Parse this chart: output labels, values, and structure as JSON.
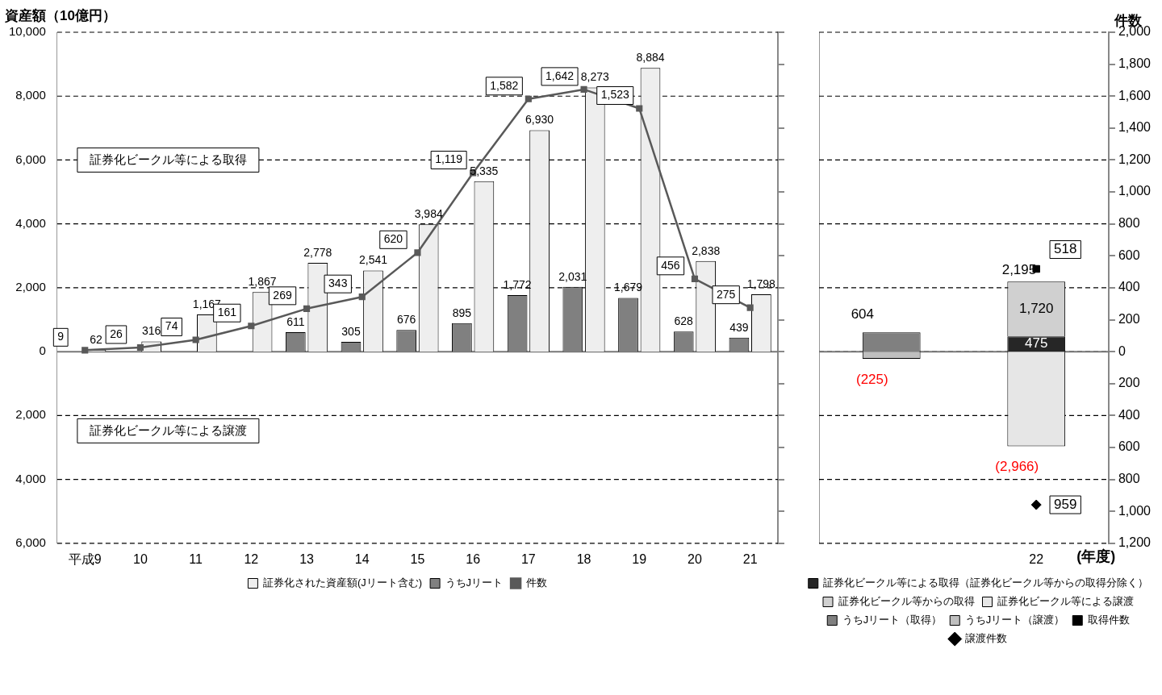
{
  "chart_data": [
    {
      "type": "bar",
      "ylabel": "資産額（10億円）",
      "categories": [
        "平成9",
        "10",
        "11",
        "12",
        "13",
        "14",
        "15",
        "16",
        "17",
        "18",
        "19",
        "20",
        "21"
      ],
      "ylim": [
        -6000,
        10000
      ],
      "yticks": [
        {
          "value": -6000,
          "label": "6,000"
        },
        {
          "value": -4000,
          "label": "4,000"
        },
        {
          "value": -2000,
          "label": "2,000"
        },
        0,
        {
          "value": 2000,
          "label": "2,000"
        },
        {
          "value": 4000,
          "label": "4,000"
        },
        {
          "value": 6000,
          "label": "6,000"
        },
        {
          "value": 8000,
          "label": "8,000"
        },
        {
          "value": 10000,
          "label": "10,000"
        }
      ],
      "y2lim": [
        -1200,
        2000
      ],
      "y2ticks": [
        {
          "value": -1200,
          "label": null
        },
        {
          "value": -1000,
          "label": null
        },
        {
          "value": -800,
          "label": null
        },
        {
          "value": -600,
          "label": null
        },
        {
          "value": -400,
          "label": null
        },
        {
          "value": -200,
          "label": null
        },
        {
          "value": 0,
          "label": null
        },
        {
          "value": 200,
          "label": null
        },
        {
          "value": 400,
          "label": null
        },
        {
          "value": 600,
          "label": null
        },
        {
          "value": 800,
          "label": null
        },
        {
          "value": 1000,
          "label": null
        },
        {
          "value": 1200,
          "label": null
        },
        {
          "value": 1400,
          "label": null
        },
        {
          "value": 1600,
          "label": null
        },
        {
          "value": 1800,
          "label": null
        },
        {
          "value": 2000,
          "label": null
        }
      ],
      "grid": "y",
      "legend": "bottom",
      "marker": "square",
      "annotations": [
        "証券化ビークル等による取得",
        "証券化ビークル等による譲渡"
      ],
      "series": [
        {
          "name": "証券化された資産額(Jリート含む)",
          "color": "#eeeeee",
          "values": [
            62,
            316,
            1167,
            1867,
            2778,
            2541,
            3984,
            5335,
            6930,
            8273,
            8884,
            2838,
            1798
          ],
          "value_labels": [
            "62",
            "316",
            "1,167",
            "1,867",
            "2,778",
            "2,541",
            "3,984",
            "5,335",
            "6,930",
            "8,273",
            "8,884",
            "2,838",
            "1,798"
          ]
        },
        {
          "name": "うちJリート",
          "color": "#808080",
          "values": [
            null,
            null,
            null,
            null,
            611,
            305,
            676,
            895,
            1772,
            2031,
            1679,
            628,
            439
          ],
          "value_labels": [
            null,
            null,
            null,
            null,
            "611",
            "305",
            "676",
            "895",
            "1,772",
            "2,031",
            "1,679",
            "628",
            "439"
          ]
        },
        {
          "name": "件数",
          "type": "line",
          "axis": "y2",
          "color": "#595959",
          "values": [
            9,
            26,
            74,
            161,
            269,
            343,
            620,
            1119,
            1582,
            1642,
            1523,
            456,
            275
          ],
          "value_labels": [
            "9",
            "26",
            "74",
            "161",
            "269",
            "343",
            "620",
            "1,119",
            "1,582",
            "1,642",
            "1,523",
            "456",
            "275"
          ]
        }
      ]
    },
    {
      "type": "bar",
      "stacked": true,
      "categories": [
        null,
        "22"
      ],
      "xlabel": "(年度)",
      "y2label": "件数",
      "ylim": [
        -6000,
        10000
      ],
      "yticks": [
        {
          "value": -6000,
          "label": null
        },
        {
          "value": -4000,
          "label": null
        },
        {
          "value": -2000,
          "label": null
        },
        {
          "value": 0,
          "label": null
        },
        {
          "value": 2000,
          "label": null
        },
        {
          "value": 4000,
          "label": null
        },
        {
          "value": 6000,
          "label": null
        },
        {
          "value": 8000,
          "label": null
        },
        {
          "value": 10000,
          "label": null
        }
      ],
      "y2lim": [
        -1200,
        2000
      ],
      "y2ticks": [
        {
          "value": -1200,
          "label": "1,200"
        },
        {
          "value": -1000,
          "label": "1,000"
        },
        {
          "value": -800,
          "label": "800"
        },
        {
          "value": -600,
          "label": "600"
        },
        {
          "value": -400,
          "label": "400"
        },
        {
          "value": -200,
          "label": "200"
        },
        {
          "value": 0,
          "label": "0"
        },
        {
          "value": 200,
          "label": "200"
        },
        {
          "value": 400,
          "label": "400"
        },
        {
          "value": 600,
          "label": "600"
        },
        {
          "value": 800,
          "label": "800"
        },
        {
          "value": 1000,
          "label": "1,000"
        },
        {
          "value": 1200,
          "label": "1,200"
        },
        {
          "value": 1400,
          "label": "1,400"
        },
        {
          "value": 1600,
          "label": "1,600"
        },
        {
          "value": 1800,
          "label": "1,800"
        },
        {
          "value": 2000,
          "label": "2,000"
        }
      ],
      "grid": "y",
      "legend": "bottom",
      "annotations": [
        {
          "text": "2,195",
          "x": "22",
          "y": 2195
        },
        {
          "text": "959",
          "x": "22",
          "y": -4795
        }
      ],
      "series": [
        {
          "name": "証券化ビークル等による取得（証券化ビークル等からの取得分除く）",
          "color": "#262626",
          "values": [
            null,
            475
          ],
          "value_labels": [
            null,
            "475"
          ]
        },
        {
          "name": "証券化ビークル等からの取得",
          "color": "#d0d0d0",
          "values": [
            null,
            1720
          ],
          "value_labels": [
            null,
            "1,720"
          ]
        },
        {
          "name": "証券化ビークル等による譲渡",
          "color": "#e6e6e6",
          "values": [
            null,
            -2966
          ],
          "value_labels": [
            null,
            "(2,966)"
          ]
        },
        {
          "name": "うちJリート（取得）",
          "color": "#808080",
          "values": [
            604,
            null
          ],
          "value_labels": [
            "604",
            null
          ]
        },
        {
          "name": "うちJリート（譲渡）",
          "color": "#bfbfbf",
          "values": [
            -225,
            null
          ],
          "value_labels": [
            "(225)",
            null
          ]
        },
        {
          "name": "取得件数",
          "type": "scatter",
          "axis": "y2",
          "marker": "square",
          "color": "#000000",
          "x": [
            "22"
          ],
          "values": [
            518
          ],
          "value_labels": [
            "518"
          ]
        },
        {
          "name": "譲渡件数",
          "type": "scatter",
          "axis": "y2",
          "marker": "diamond",
          "color": "#000000",
          "x": [
            "22"
          ],
          "values": [
            -959
          ]
        }
      ]
    }
  ]
}
